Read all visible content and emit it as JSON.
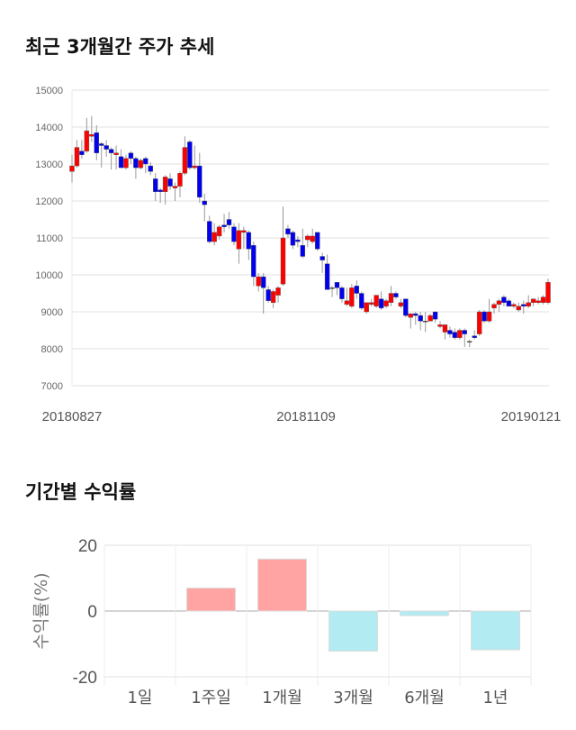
{
  "chart_data": [
    {
      "type": "candlestick",
      "title": "최근 3개월간 주가 추세",
      "ylim": [
        7000,
        15000
      ],
      "yticks": [
        "15000",
        "14000",
        "13000",
        "12000",
        "11000",
        "10000",
        "9000",
        "8000",
        "7000"
      ],
      "xticks": [
        "20180827",
        "20181109",
        "20190121"
      ],
      "up_color": "#ff0000",
      "down_color": "#0000ee",
      "candles_ohlc": [
        [
          12800,
          13250,
          12500,
          12950
        ],
        [
          12950,
          13650,
          12900,
          13450
        ],
        [
          13350,
          13650,
          13150,
          13250
        ],
        [
          13350,
          14250,
          13300,
          13900
        ],
        [
          13750,
          14300,
          13600,
          13800
        ],
        [
          13850,
          14050,
          13100,
          13300
        ],
        [
          13550,
          13600,
          12900,
          13500
        ],
        [
          13500,
          13650,
          13200,
          13400
        ],
        [
          13400,
          13450,
          12850,
          13300
        ],
        [
          13250,
          13500,
          12850,
          13300
        ],
        [
          13200,
          13400,
          12900,
          12900
        ],
        [
          12900,
          13250,
          12850,
          13150
        ],
        [
          13300,
          13350,
          13000,
          13150
        ],
        [
          13150,
          13200,
          12600,
          12900
        ],
        [
          12900,
          13150,
          12850,
          13100
        ],
        [
          13150,
          13200,
          12750,
          13000
        ],
        [
          12950,
          13050,
          12700,
          12800
        ],
        [
          12600,
          12750,
          12000,
          12250
        ],
        [
          12300,
          12350,
          11950,
          12250
        ],
        [
          12250,
          12700,
          11900,
          12650
        ],
        [
          12600,
          12750,
          12300,
          12400
        ],
        [
          12350,
          12500,
          12000,
          12400
        ],
        [
          12400,
          12800,
          12100,
          12750
        ],
        [
          12750,
          13750,
          12700,
          13450
        ],
        [
          13600,
          13650,
          12850,
          12900
        ],
        [
          12900,
          13500,
          12850,
          12950
        ],
        [
          12950,
          13300,
          11950,
          12100
        ],
        [
          12000,
          12200,
          11450,
          11900
        ],
        [
          11450,
          11600,
          10850,
          10900
        ],
        [
          10900,
          11400,
          10800,
          11150
        ],
        [
          11050,
          11350,
          10950,
          11300
        ],
        [
          11350,
          11650,
          11150,
          11300
        ],
        [
          11500,
          11700,
          11250,
          11350
        ],
        [
          11300,
          11400,
          10800,
          10900
        ],
        [
          10700,
          11400,
          10300,
          11200
        ],
        [
          11150,
          11300,
          10700,
          11200
        ],
        [
          11150,
          11200,
          10400,
          10700
        ],
        [
          10800,
          10900,
          9700,
          9950
        ],
        [
          9700,
          10050,
          9550,
          9950
        ],
        [
          9950,
          10050,
          8950,
          9650
        ],
        [
          9600,
          9700,
          9250,
          9300
        ],
        [
          9250,
          9600,
          9100,
          9550
        ],
        [
          9450,
          9700,
          9250,
          9650
        ],
        [
          9750,
          11850,
          9700,
          11000
        ],
        [
          11250,
          11350,
          11000,
          11100
        ],
        [
          11150,
          11200,
          10700,
          10800
        ],
        [
          10950,
          11050,
          10750,
          10900
        ],
        [
          10800,
          11250,
          10450,
          10500
        ],
        [
          10950,
          11100,
          10750,
          11050
        ],
        [
          10900,
          11250,
          10850,
          11050
        ],
        [
          11150,
          11150,
          10650,
          10700
        ],
        [
          10500,
          10600,
          10050,
          10400
        ],
        [
          10300,
          10550,
          9600,
          9600
        ],
        [
          9650,
          9700,
          9400,
          9650
        ],
        [
          9800,
          9800,
          9450,
          9650
        ],
        [
          9650,
          9700,
          9250,
          9350
        ],
        [
          9200,
          9650,
          9150,
          9300
        ],
        [
          9150,
          9750,
          9100,
          9650
        ],
        [
          9700,
          9850,
          9350,
          9500
        ],
        [
          9500,
          9550,
          9050,
          9100
        ],
        [
          9000,
          9250,
          8950,
          9250
        ],
        [
          9200,
          9350,
          9150,
          9250
        ],
        [
          9150,
          9450,
          9100,
          9450
        ],
        [
          9350,
          9550,
          9050,
          9100
        ],
        [
          9150,
          9350,
          9100,
          9300
        ],
        [
          9250,
          9700,
          9150,
          9500
        ],
        [
          9500,
          9550,
          9350,
          9400
        ],
        [
          9150,
          9350,
          9100,
          9250
        ],
        [
          9350,
          9350,
          8850,
          8900
        ],
        [
          8850,
          8950,
          8550,
          8950
        ],
        [
          8950,
          9000,
          8650,
          8900
        ],
        [
          8900,
          9000,
          8500,
          8750
        ],
        [
          8750,
          9000,
          8450,
          8750
        ],
        [
          8750,
          8950,
          8750,
          8900
        ],
        [
          9000,
          9000,
          8700,
          8800
        ],
        [
          8600,
          8750,
          8550,
          8650
        ],
        [
          8450,
          8650,
          8250,
          8650
        ],
        [
          8500,
          8600,
          8300,
          8400
        ],
        [
          8450,
          8550,
          8250,
          8300
        ],
        [
          8300,
          8550,
          8250,
          8500
        ],
        [
          8500,
          8550,
          8050,
          8400
        ],
        [
          8200,
          8250,
          8050,
          8200
        ],
        [
          8350,
          8500,
          8250,
          8300
        ],
        [
          8400,
          9050,
          8350,
          9000
        ],
        [
          9000,
          9050,
          8700,
          8750
        ],
        [
          8750,
          9350,
          8700,
          9000
        ],
        [
          9100,
          9250,
          8950,
          9200
        ],
        [
          9200,
          9350,
          9000,
          9300
        ],
        [
          9400,
          9450,
          9150,
          9250
        ],
        [
          9300,
          9350,
          9150,
          9150
        ],
        [
          9150,
          9250,
          9100,
          9200
        ],
        [
          9050,
          9250,
          9000,
          9150
        ],
        [
          9200,
          9300,
          8950,
          9150
        ],
        [
          9150,
          9450,
          9100,
          9250
        ],
        [
          9250,
          9350,
          9150,
          9350
        ],
        [
          9250,
          9400,
          9200,
          9300
        ],
        [
          9250,
          9450,
          9200,
          9400
        ],
        [
          9250,
          9900,
          9200,
          9800
        ]
      ]
    },
    {
      "type": "bar",
      "title": "기간별 수익률",
      "ylabel": "수익률(%)",
      "ylim": [
        -20,
        20
      ],
      "yticks": [
        "20",
        "0",
        "-20"
      ],
      "categories": [
        "1일",
        "1주일",
        "1개월",
        "3개월",
        "6개월",
        "1년"
      ],
      "values": [
        0,
        7.0,
        15.8,
        -12.2,
        -1.4,
        -11.8
      ],
      "positive_color": "#ffa3a3",
      "negative_color": "#b2ebf2"
    }
  ]
}
